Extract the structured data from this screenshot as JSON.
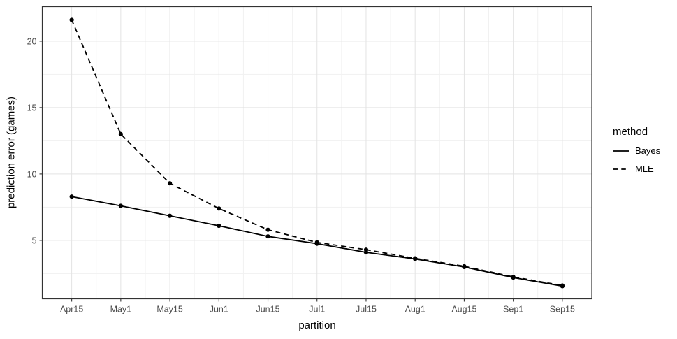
{
  "chart_data": {
    "type": "line",
    "title": "",
    "xlabel": "partition",
    "ylabel": "prediction error (games)",
    "categories": [
      "Apr15",
      "May1",
      "May15",
      "Jun1",
      "Jun15",
      "Jul1",
      "Jul15",
      "Aug1",
      "Aug15",
      "Sep1",
      "Sep15"
    ],
    "series": [
      {
        "name": "Bayes",
        "linetype": "solid",
        "color": "#000000",
        "values": [
          8.3,
          7.6,
          6.85,
          6.1,
          5.3,
          4.75,
          4.1,
          3.6,
          3.0,
          2.2,
          1.55
        ]
      },
      {
        "name": "MLE",
        "linetype": "dashed",
        "color": "#000000",
        "values": [
          21.6,
          13.0,
          9.3,
          7.4,
          5.8,
          4.85,
          4.3,
          3.65,
          3.05,
          2.25,
          1.6
        ]
      }
    ],
    "y_ticks": [
      5,
      10,
      15,
      20
    ],
    "y_minor_ticks": [
      2.5,
      7.5,
      12.5,
      17.5,
      22.5
    ],
    "ylim": [
      0.6,
      22.6
    ],
    "grid": "major and minor, both axes",
    "legend": {
      "title": "method",
      "position": "right"
    },
    "style": {
      "background": "#FFFFFF",
      "panel_background": "#FFFFFF",
      "panel_border": "#333333",
      "grid_major": "#E3E3E3",
      "grid_minor": "#F1F1F1",
      "tick_color": "#333333",
      "tick_text_color": "#4D4D4D",
      "axis_title_color": "#000000",
      "line_color": "#000000",
      "point_color": "#000000"
    }
  }
}
